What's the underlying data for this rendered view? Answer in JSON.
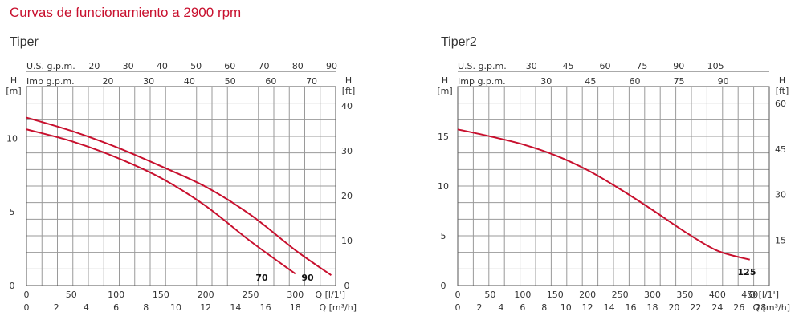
{
  "heading": "Curvas de funcionamiento a 2900 rpm",
  "chart_data": [
    {
      "type": "line",
      "title": "Tiper",
      "x": {
        "label": "Q [l/1']",
        "lim": [
          0,
          345
        ],
        "ticks": [
          0,
          50,
          100,
          150,
          200,
          250,
          300
        ]
      },
      "x_m3h": {
        "label": "Q [m³/h]",
        "ticks": [
          0,
          2,
          4,
          6,
          8,
          10,
          12,
          14,
          16,
          18
        ]
      },
      "y": {
        "label": "H",
        "unit": "[m]",
        "lim": [
          0,
          13.5
        ],
        "ticks": [
          0,
          5,
          10
        ]
      },
      "y_ft": {
        "label": "H",
        "unit": "[ft]",
        "ticks": [
          0,
          10,
          20,
          30,
          40
        ]
      },
      "us_gpm": {
        "label": "U.S.  g.p.m.",
        "ticks": [
          20,
          30,
          40,
          50,
          60,
          70,
          80,
          90
        ]
      },
      "imp_gpm": {
        "label": "Imp  g.p.m.",
        "ticks": [
          20,
          30,
          40,
          50,
          60,
          70
        ]
      },
      "series": [
        {
          "name": "70",
          "x": [
            0,
            50,
            100,
            150,
            200,
            250,
            300
          ],
          "y": [
            10.6,
            9.8,
            8.7,
            7.3,
            5.4,
            3.0,
            0.8
          ]
        },
        {
          "name": "90",
          "x": [
            0,
            50,
            100,
            150,
            200,
            250,
            300,
            340
          ],
          "y": [
            11.4,
            10.5,
            9.4,
            8.1,
            6.7,
            4.8,
            2.4,
            0.7
          ]
        }
      ]
    },
    {
      "type": "line",
      "title": "Tiper2",
      "x": {
        "label": "Q [l/1']",
        "lim": [
          0,
          480
        ],
        "ticks": [
          0,
          50,
          100,
          150,
          200,
          250,
          300,
          350,
          400,
          450
        ]
      },
      "x_m3h": {
        "label": "Q [m³/h]",
        "ticks": [
          0,
          2,
          4,
          6,
          8,
          10,
          12,
          14,
          16,
          18,
          20,
          22,
          24,
          26,
          28
        ]
      },
      "y": {
        "label": "H",
        "unit": "[m]",
        "lim": [
          0,
          20
        ],
        "ticks": [
          0,
          5,
          10,
          15
        ]
      },
      "y_ft": {
        "label": "H",
        "unit": "[ft]",
        "ticks": [
          15,
          30,
          45,
          60
        ]
      },
      "us_gpm": {
        "label": "U.S.  g.p.m.",
        "ticks": [
          30,
          45,
          60,
          75,
          90,
          105
        ]
      },
      "imp_gpm": {
        "label": "Imp  g.p.m.",
        "ticks": [
          30,
          45,
          60,
          75,
          90
        ]
      },
      "series": [
        {
          "name": "125",
          "x": [
            0,
            50,
            100,
            150,
            200,
            250,
            300,
            350,
            400,
            450
          ],
          "y": [
            15.7,
            15.0,
            14.2,
            13.1,
            11.6,
            9.7,
            7.6,
            5.4,
            3.5,
            2.6
          ]
        }
      ]
    }
  ]
}
